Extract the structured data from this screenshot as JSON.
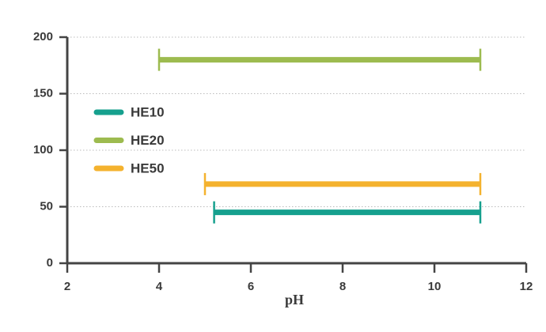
{
  "chart_data": {
    "type": "range-bar",
    "x_label": "pH",
    "xlim": [
      2,
      12
    ],
    "xticks": [
      2,
      4,
      6,
      8,
      10,
      12
    ],
    "ylim": [
      0,
      200
    ],
    "yticks": [
      0,
      50,
      100,
      150,
      200
    ],
    "grid": true,
    "legend": "left",
    "series": [
      {
        "name": "HE10",
        "color": "#16a08e",
        "y": 45,
        "x": [
          5.2,
          11
        ]
      },
      {
        "name": "HE20",
        "color": "#9dbb4f",
        "y": 180,
        "x": [
          4,
          11
        ]
      },
      {
        "name": "HE50",
        "color": "#f4b22e",
        "y": 70,
        "x": [
          5,
          11
        ]
      }
    ]
  }
}
